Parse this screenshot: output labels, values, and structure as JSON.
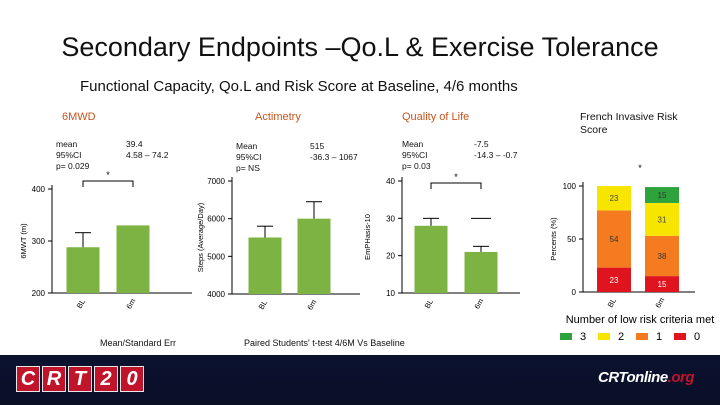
{
  "title": "Secondary Endpoints –Qo.L & Exercise Tolerance",
  "subtitle": "Functional Capacity, Qo.L and Risk Score at Baseline, 4/6 months",
  "panels": {
    "mwd": {
      "title": "6MWD",
      "stat_labels": [
        "mean",
        "95%CI",
        "p= 0.029"
      ],
      "stat_values": [
        "39.4",
        "4.58 – 74.2"
      ]
    },
    "actimetry": {
      "title": "Actimetry",
      "stat_labels": [
        "Mean",
        "95%CI",
        "p= NS"
      ],
      "stat_values": [
        "515",
        "-36.3 – 1067"
      ]
    },
    "qol": {
      "title": "Quality of Life",
      "stat_labels": [
        "Mean",
        "95%CI",
        "p= 0.03"
      ],
      "stat_values": [
        "-7.5",
        "-14.3 – -0.7"
      ]
    },
    "risk": {
      "title": "French Invasive Risk Score"
    }
  },
  "notes": {
    "left": "Mean/Standard Err",
    "middle": "Paired Students' t-test 4/6M Vs Baseline"
  },
  "footer": {
    "logo_left": "CRT20",
    "logo_right_a": "CRTonline",
    "logo_right_b": ".org"
  },
  "chart_data": [
    {
      "type": "bar",
      "name": "mwd",
      "ylabel": "6MWT (m)",
      "categories": [
        "BL",
        "6m"
      ],
      "values": [
        288,
        330
      ],
      "errors": [
        28,
        0
      ],
      "ylim": [
        200,
        400
      ],
      "yticks": [
        200,
        300,
        400
      ],
      "significance": "*"
    },
    {
      "type": "bar",
      "name": "actimetry",
      "ylabel": "Steps (Average/Day)",
      "categories": [
        "BL",
        "6m"
      ],
      "values": [
        5500,
        6000
      ],
      "errors": [
        300,
        450
      ],
      "ylim": [
        4000,
        7000
      ],
      "yticks": [
        4000,
        5000,
        6000,
        7000
      ]
    },
    {
      "type": "bar",
      "name": "qol",
      "ylabel": "EmPHasis-10",
      "categories": [
        "BL",
        "6m"
      ],
      "values": [
        28,
        21
      ],
      "errors": [
        2,
        1.5
      ],
      "ylim": [
        10,
        40
      ],
      "yticks": [
        10,
        20,
        30,
        40
      ],
      "significance": "*"
    },
    {
      "type": "bar",
      "stacked": true,
      "name": "risk",
      "ylabel": "Percents (%)",
      "xlabel": "Number of low risk criteria met",
      "categories": [
        "BL",
        "6m"
      ],
      "ylim": [
        0,
        100
      ],
      "yticks": [
        0,
        50,
        100
      ],
      "significance": "*",
      "series": [
        {
          "name": "0",
          "color": "#e0141e",
          "values": [
            23,
            15
          ]
        },
        {
          "name": "1",
          "color": "#f47b20",
          "values": [
            54,
            38
          ]
        },
        {
          "name": "2",
          "color": "#f7e500",
          "values": [
            23,
            31
          ]
        },
        {
          "name": "3",
          "color": "#2ea33b",
          "values": [
            0,
            15
          ]
        }
      ],
      "legend": [
        {
          "label": "3",
          "color": "#2ea33b"
        },
        {
          "label": "2",
          "color": "#f7e500"
        },
        {
          "label": "1",
          "color": "#f47b20"
        },
        {
          "label": "0",
          "color": "#e0141e"
        }
      ]
    }
  ]
}
